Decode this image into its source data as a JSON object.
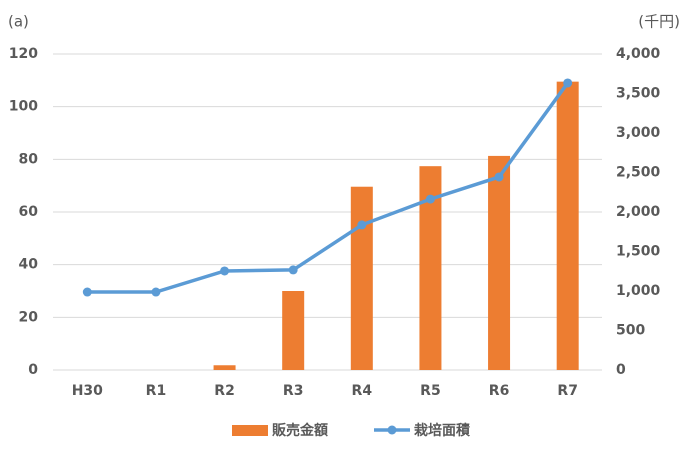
{
  "chart_data": {
    "type": "bar-line",
    "y_label": "(a)",
    "y2_label": "(千円)",
    "categories": [
      "H30",
      "R1",
      "R2",
      "R3",
      "R4",
      "R5",
      "R6",
      "R7"
    ],
    "series": [
      {
        "name": "販売金額",
        "type": "bar",
        "axis": "y2",
        "color": "#ed7d31",
        "values": [
          null,
          null,
          60,
          1000,
          2320,
          2580,
          2710,
          3650
        ]
      },
      {
        "name": "栽培面積",
        "type": "line",
        "color": "#5b9bd5",
        "values": [
          29.6,
          29.6,
          37.6,
          38,
          55.1,
          64.9,
          73.3,
          109
        ]
      }
    ],
    "ylim": [
      0,
      120
    ],
    "yticks": [
      0,
      20,
      40,
      60,
      80,
      100,
      120
    ],
    "y2lim": [
      0,
      4000
    ],
    "y2ticks": [
      0,
      500,
      {
        "value": 1000,
        "label": "1,000"
      },
      {
        "value": 1500,
        "label": "1,500"
      },
      {
        "value": 2000,
        "label": "2,000"
      },
      {
        "value": 2500,
        "label": "2,500"
      },
      {
        "value": 3000,
        "label": "3,000"
      },
      {
        "value": 3500,
        "label": "3,500"
      },
      {
        "value": 4000,
        "label": "4,000"
      }
    ],
    "grid": true
  }
}
